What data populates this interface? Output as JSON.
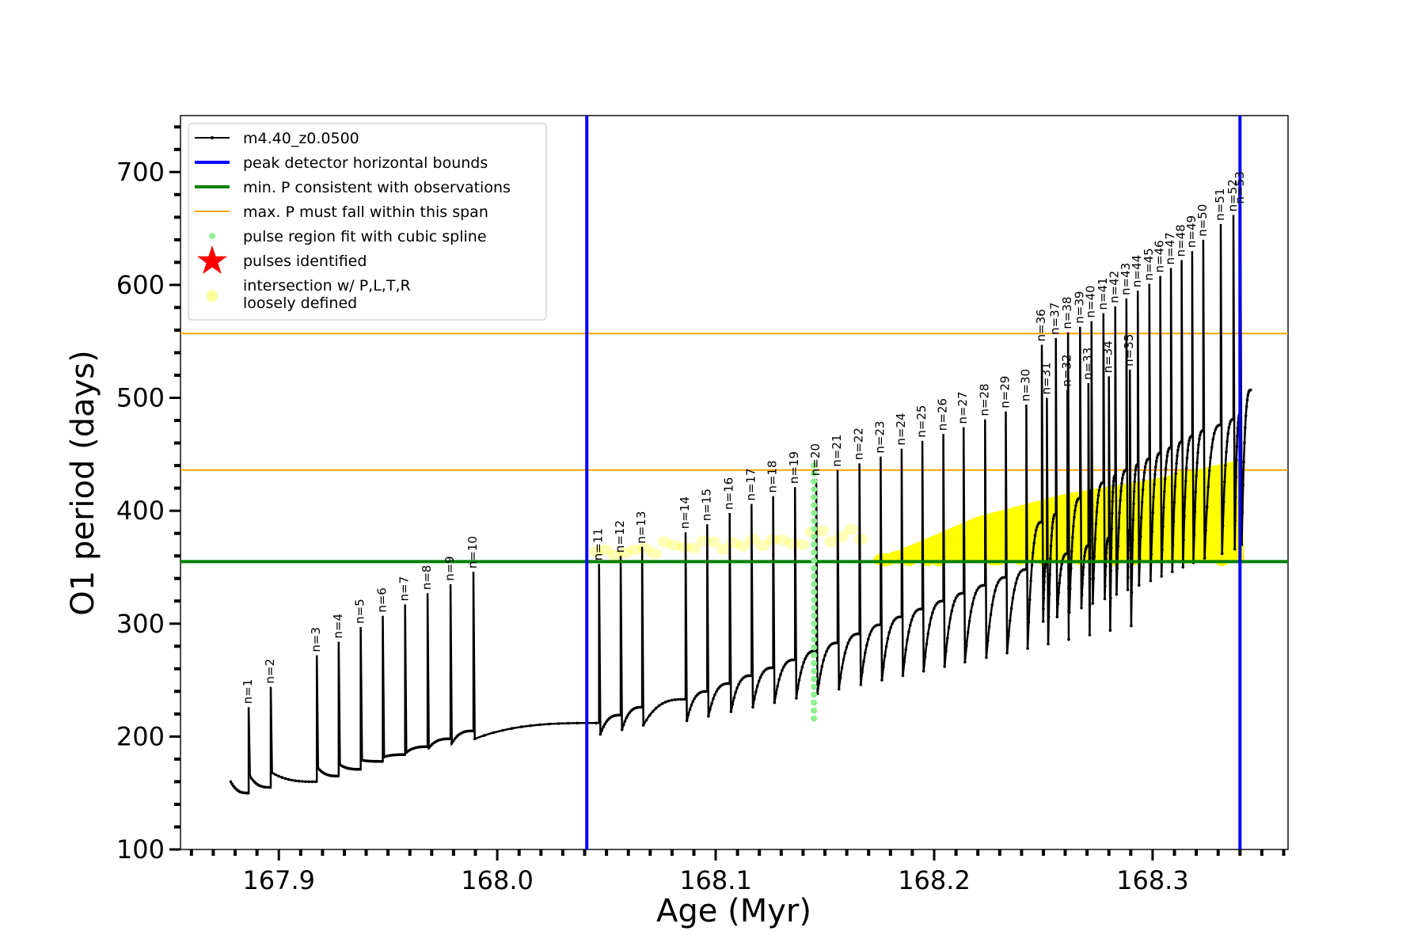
{
  "chart_data": {
    "type": "line",
    "title": "",
    "xlabel": "Age (Myr)",
    "ylabel": "O1 period (days)",
    "xlim": [
      167.855,
      168.362
    ],
    "ylim": [
      100,
      750
    ],
    "xticks": [
      167.9,
      168.0,
      168.1,
      168.2,
      168.3
    ],
    "xtick_labels": [
      "167.9",
      "168.0",
      "168.1",
      "168.2",
      "168.3"
    ],
    "yticks": [
      100,
      200,
      300,
      400,
      500,
      600,
      700
    ],
    "ytick_labels": [
      "100",
      "200",
      "300",
      "400",
      "500",
      "600",
      "700"
    ],
    "grid": false,
    "legend_position": "top-left",
    "colors": {
      "track": "#000000",
      "bounds": "#0000ff",
      "min_period": "#008000",
      "max_period_span": "#ffa500",
      "spline": "#90ee90",
      "pulses": "#ff0000",
      "intersection": "#ffff00"
    },
    "legend": [
      {
        "label": "m4.40_z0.0500",
        "marker": "line-dot"
      },
      {
        "label": "peak detector horizontal bounds",
        "marker": "line-blue"
      },
      {
        "label": "min. P consistent with observations",
        "marker": "line-green"
      },
      {
        "label": "max. P must fall within this span",
        "marker": "line-orange"
      },
      {
        "label": "pulse region fit with cubic spline",
        "marker": "dot-green"
      },
      {
        "label": "pulses identified",
        "marker": "star-red"
      },
      {
        "label": "intersection w/ P,L,T,R",
        "label2": "loosely defined",
        "marker": "dot-yellow"
      }
    ],
    "vertical_lines": [
      168.041,
      168.34
    ],
    "min_period": 355,
    "max_period_span": [
      436,
      557
    ],
    "series": [
      {
        "name": "m4.40_z0.0500",
        "x_start": 167.878,
        "x_end": 168.345,
        "end_value": 507,
        "pulses": [
          {
            "label": "n=1",
            "x": 167.8862,
            "peak": 226,
            "base": 150,
            "min": 165
          },
          {
            "label": "n=2",
            "x": 167.8963,
            "peak": 244,
            "base": 155,
            "min": 168
          },
          {
            "label": "n=3",
            "x": 167.9174,
            "peak": 272,
            "base": 160,
            "min": 172
          },
          {
            "label": "n=4",
            "x": 167.9274,
            "peak": 284,
            "base": 165,
            "min": 175
          },
          {
            "label": "n=5",
            "x": 167.9375,
            "peak": 297,
            "base": 171,
            "min": 179
          },
          {
            "label": "n=6",
            "x": 167.9476,
            "peak": 307,
            "base": 178,
            "min": 182
          },
          {
            "label": "n=7",
            "x": 167.9578,
            "peak": 317,
            "base": 184,
            "min": 186
          },
          {
            "label": "n=8",
            "x": 167.9681,
            "peak": 327,
            "base": 191,
            "min": 190
          },
          {
            "label": "n=9",
            "x": 167.9786,
            "peak": 335,
            "base": 198,
            "min": 194
          },
          {
            "label": "n=10",
            "x": 167.9891,
            "peak": 346,
            "base": 205,
            "min": 198
          },
          {
            "label": "n=11",
            "x": 168.0466,
            "peak": 353,
            "base": 212,
            "min": 202
          },
          {
            "label": "n=12",
            "x": 168.0565,
            "peak": 360,
            "base": 219,
            "min": 206
          },
          {
            "label": "n=13",
            "x": 168.0663,
            "peak": 368,
            "base": 226,
            "min": 210
          },
          {
            "label": "n=14",
            "x": 168.0862,
            "peak": 381,
            "base": 233,
            "min": 214
          },
          {
            "label": "n=15",
            "x": 168.0961,
            "peak": 388,
            "base": 240,
            "min": 218
          },
          {
            "label": "n=16",
            "x": 168.1064,
            "peak": 398,
            "base": 247,
            "min": 222
          },
          {
            "label": "n=17",
            "x": 168.1164,
            "peak": 406,
            "base": 254,
            "min": 226
          },
          {
            "label": "n=18",
            "x": 168.1263,
            "peak": 413,
            "base": 261,
            "min": 230
          },
          {
            "label": "n=19",
            "x": 168.1363,
            "peak": 421,
            "base": 268,
            "min": 234
          },
          {
            "label": "n=20",
            "x": 168.146,
            "peak": 428,
            "base": 276,
            "min": 238
          },
          {
            "label": "n=21",
            "x": 168.1558,
            "peak": 436,
            "base": 283,
            "min": 242
          },
          {
            "label": "n=22",
            "x": 168.1658,
            "peak": 442,
            "base": 291,
            "min": 246
          },
          {
            "label": "n=23",
            "x": 168.1755,
            "peak": 448,
            "base": 299,
            "min": 250
          },
          {
            "label": "n=24",
            "x": 168.1851,
            "peak": 455,
            "base": 306,
            "min": 254
          },
          {
            "label": "n=25",
            "x": 168.1946,
            "peak": 462,
            "base": 313,
            "min": 258
          },
          {
            "label": "n=26",
            "x": 168.2042,
            "peak": 468,
            "base": 320,
            "min": 262
          },
          {
            "label": "n=27",
            "x": 168.2135,
            "peak": 474,
            "base": 327,
            "min": 266
          },
          {
            "label": "n=28",
            "x": 168.2233,
            "peak": 481,
            "base": 334,
            "min": 270
          },
          {
            "label": "n=29",
            "x": 168.2328,
            "peak": 488,
            "base": 341,
            "min": 274
          },
          {
            "label": "n=30",
            "x": 168.2422,
            "peak": 494,
            "base": 348,
            "min": 278
          },
          {
            "label": "n=31",
            "x": 168.2516,
            "peak": 500,
            "base": 355,
            "min": 282
          },
          {
            "label": "n=32",
            "x": 168.261,
            "peak": 507,
            "base": 362,
            "min": 286
          },
          {
            "label": "n=33",
            "x": 168.2706,
            "peak": 513,
            "base": 369,
            "min": 290
          },
          {
            "label": "n=34",
            "x": 168.28,
            "peak": 519,
            "base": 376,
            "min": 294
          },
          {
            "label": "n=35",
            "x": 168.2896,
            "peak": 525,
            "base": 383,
            "min": 298
          },
          {
            "label": "n=36",
            "x": 168.2493,
            "peak": 547,
            "base": 390,
            "min": 302
          },
          {
            "label": "n=37",
            "x": 168.2557,
            "peak": 553,
            "base": 397,
            "min": 306
          },
          {
            "label": "n=38",
            "x": 168.2613,
            "peak": 558,
            "base": 404,
            "min": 310
          },
          {
            "label": "n=39",
            "x": 168.2668,
            "peak": 563,
            "base": 411,
            "min": 314
          },
          {
            "label": "n=40",
            "x": 168.272,
            "peak": 568,
            "base": 418,
            "min": 318
          },
          {
            "label": "n=41",
            "x": 168.2775,
            "peak": 575,
            "base": 425,
            "min": 322
          },
          {
            "label": "n=42",
            "x": 168.2829,
            "peak": 581,
            "base": 431,
            "min": 326
          },
          {
            "label": "n=43",
            "x": 168.288,
            "peak": 588,
            "base": 436,
            "min": 330
          },
          {
            "label": "n=44",
            "x": 168.2932,
            "peak": 595,
            "base": 441,
            "min": 334
          },
          {
            "label": "n=45",
            "x": 168.2985,
            "peak": 601,
            "base": 446,
            "min": 338
          },
          {
            "label": "n=46",
            "x": 168.3035,
            "peak": 608,
            "base": 451,
            "min": 342
          },
          {
            "label": "n=47",
            "x": 168.3084,
            "peak": 615,
            "base": 456,
            "min": 346
          },
          {
            "label": "n=48",
            "x": 168.3133,
            "peak": 622,
            "base": 461,
            "min": 350
          },
          {
            "label": "n=49",
            "x": 168.3181,
            "peak": 630,
            "base": 466,
            "min": 354
          },
          {
            "label": "n=50",
            "x": 168.3232,
            "peak": 640,
            "base": 471,
            "min": 358
          },
          {
            "label": "n=51",
            "x": 168.3312,
            "peak": 654,
            "base": 476,
            "min": 362
          },
          {
            "label": "n=52",
            "x": 168.337,
            "peak": 662,
            "base": 481,
            "min": 366
          },
          {
            "label": "n=53",
            "x": 168.3402,
            "peak": 669,
            "base": 486,
            "min": 370
          }
        ]
      },
      {
        "name": "pulse region fit with cubic spline",
        "x": 168.145,
        "y_range": [
          216,
          445
        ]
      },
      {
        "name": "intersection w/ P,L,T,R loosely defined",
        "x_range": [
          168.04,
          168.34
        ],
        "y_range": [
          355,
          445
        ]
      }
    ]
  }
}
